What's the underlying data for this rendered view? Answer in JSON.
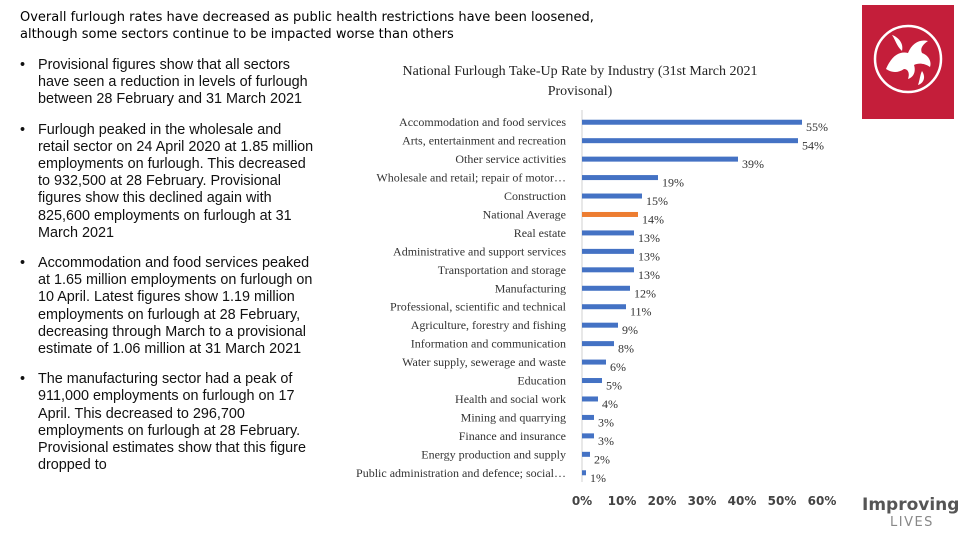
{
  "title_line1": "Overall furlough rates have decreased as public health restrictions have been loosened,",
  "title_line2": "although some sectors continue to be impacted worse than others",
  "bullets": [
    "Provisional figures show that all sectors have seen a reduction in levels of furlough between 28 February and 31 March 2021",
    "Furlough peaked in the wholesale and retail sector on 24 April 2020 at 1.85 million employments on furlough. This decreased to 932,500 at 28 February. Provisional figures show this declined again with 825,600 employments on furlough at 31 March 2021",
    "Accommodation and food services peaked at 1.65 million employments on furlough on 10 April. Latest figures show 1.19 million employments on furlough at 28 February, decreasing through March to a provisional estimate of 1.06 million at 31 March 2021",
    "The manufacturing sector had a peak of 911,000 employments on furlough on 17 April. This decreased to 296,700 employments on furlough at 28 February. Provisional estimates show that this figure dropped to"
  ],
  "bullet_marker": "•",
  "brand": {
    "line1": "Improving",
    "line2": "LIVES"
  },
  "colors": {
    "bar": "#4472c4",
    "highlight": "#ed7d31",
    "logo": "#c41e3a"
  },
  "chart_data": {
    "type": "bar",
    "orientation": "horizontal",
    "title_line1": "National Furlough Take-Up Rate by Industry (31st March 2021",
    "title_line2": "Provisonal)",
    "categories": [
      "Accommodation and food services",
      "Arts, entertainment and recreation",
      "Other service activities",
      "Wholesale and retail; repair of motor…",
      "Construction",
      "National Average",
      "Real estate",
      "Administrative and support services",
      "Transportation and storage",
      "Manufacturing",
      "Professional, scientific and technical",
      "Agriculture, forestry and fishing",
      "Information and communication",
      "Water supply, sewerage and waste",
      "Education",
      "Health and social work",
      "Mining and quarrying",
      "Finance and insurance",
      "Energy production and supply",
      "Public administration and defence; social…"
    ],
    "values": [
      55,
      54,
      39,
      19,
      15,
      14,
      13,
      13,
      13,
      12,
      11,
      9,
      8,
      6,
      5,
      4,
      3,
      3,
      2,
      1
    ],
    "value_labels": [
      "55%",
      "54%",
      "39%",
      "19%",
      "15%",
      "14%",
      "13%",
      "13%",
      "13%",
      "12%",
      "11%",
      "9%",
      "8%",
      "6%",
      "5%",
      "4%",
      "3%",
      "3%",
      "2%",
      "1%"
    ],
    "highlight_category": "National Average",
    "xlim": [
      0,
      60
    ],
    "xticks": [
      "0%",
      "10%",
      "20%",
      "30%",
      "40%",
      "50%",
      "60%"
    ],
    "xlabel": "",
    "ylabel": "",
    "grid": false,
    "legend": "none"
  }
}
